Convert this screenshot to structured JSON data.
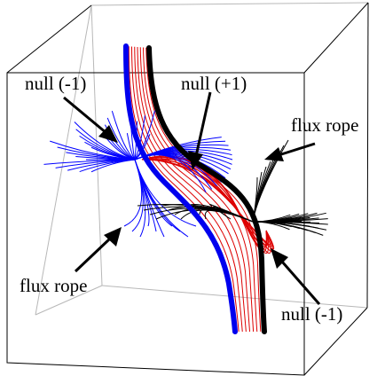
{
  "figure": {
    "labels": {
      "null_minus_left": "null (-1)",
      "null_plus": "null (+1)",
      "flux_rope_right": "flux rope",
      "flux_rope_left": "flux rope",
      "null_minus_right": "null (-1)"
    },
    "colors": {
      "box": "#b8b8b8",
      "box_front": "#000000",
      "rope_blue": "#0000ee",
      "rope_black": "#000000",
      "field_red": "#dd0000",
      "field_blue": "#0000ff",
      "field_black": "#000000"
    }
  }
}
